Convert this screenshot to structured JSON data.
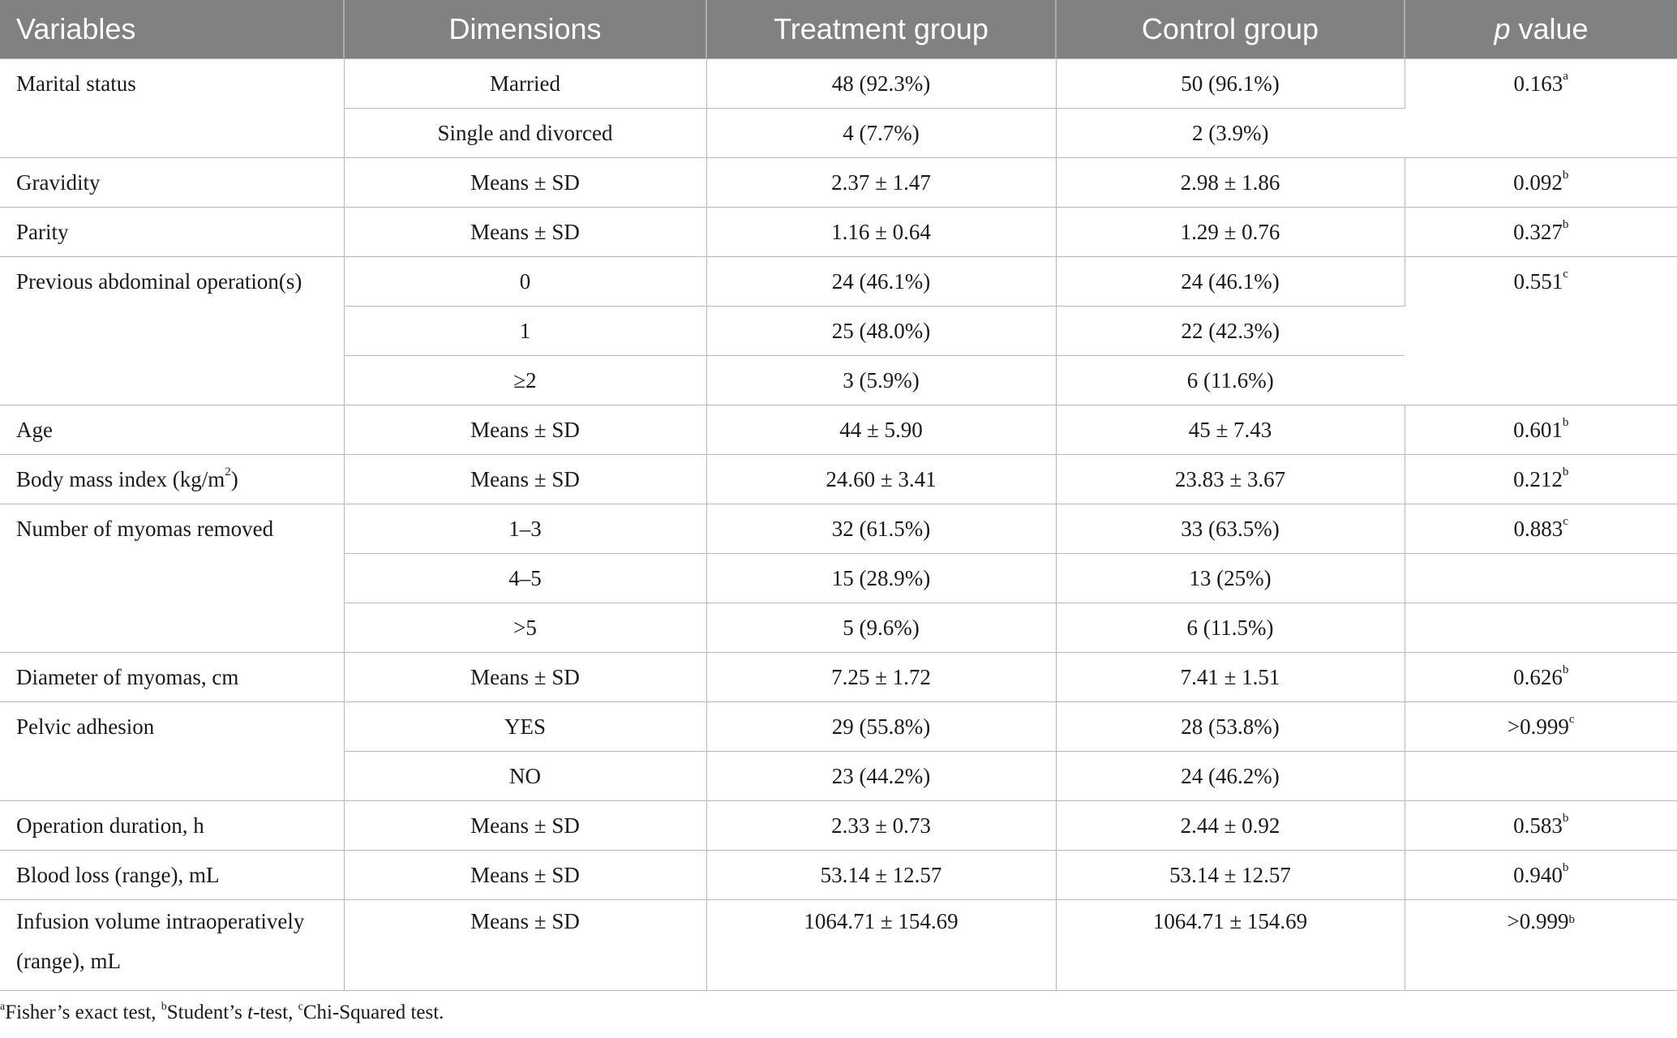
{
  "header": {
    "variables": "Variables",
    "dimensions": "Dimensions",
    "treatment": "Treatment group",
    "control": "Control group",
    "p_italic": "p",
    "p_rest": " value"
  },
  "rows": {
    "marital": {
      "label": "Marital status",
      "p": "0.163",
      "p_sup": "a",
      "sub": [
        {
          "dim": "Married",
          "t": "48 (92.3%)",
          "c": "50 (96.1%)"
        },
        {
          "dim": "Single and divorced",
          "t": "4 (7.7%)",
          "c": "2 (3.9%)"
        }
      ]
    },
    "gravidity": {
      "label": "Gravidity",
      "dim": "Means ± SD",
      "t": "2.37 ± 1.47",
      "c": "2.98 ± 1.86",
      "p": "0.092",
      "p_sup": "b"
    },
    "parity": {
      "label": "Parity",
      "dim": "Means ± SD",
      "t": "1.16 ± 0.64",
      "c": "1.29 ± 0.76",
      "p": "0.327",
      "p_sup": "b"
    },
    "prev_op": {
      "label": "Previous abdominal operation(s)",
      "p": "0.551",
      "p_sup": "c",
      "sub": [
        {
          "dim": "0",
          "t": "24 (46.1%)",
          "c": "24 (46.1%)"
        },
        {
          "dim": "1",
          "t": "25 (48.0%)",
          "c": "22 (42.3%)"
        },
        {
          "dim": "≥2",
          "t": "3 (5.9%)",
          "c": "6 (11.6%)"
        }
      ]
    },
    "age": {
      "label": "Age",
      "dim": "Means ± SD",
      "t": "44 ± 5.90",
      "c": "45 ± 7.43",
      "p": "0.601",
      "p_sup": "b"
    },
    "bmi": {
      "label_pre": "Body mass index (kg/m",
      "label_sup": "2",
      "label_post": ")",
      "dim": "Means ± SD",
      "t": "24.60 ± 3.41",
      "c": "23.83 ± 3.67",
      "p": "0.212",
      "p_sup": "b"
    },
    "myomas_num": {
      "label": "Number of myomas removed",
      "p": "0.883",
      "p_sup": "c",
      "sub": [
        {
          "dim": "1–3",
          "t": "32 (61.5%)",
          "c": "33 (63.5%)"
        },
        {
          "dim": "4–5",
          "t": "15 (28.9%)",
          "c": "13 (25%)"
        },
        {
          "dim": ">5",
          "t": "5 (9.6%)",
          "c": "6 (11.5%)"
        }
      ]
    },
    "diameter": {
      "label": "Diameter of myomas, cm",
      "dim": "Means ± SD",
      "t": "7.25 ± 1.72",
      "c": "7.41 ± 1.51",
      "p": "0.626",
      "p_sup": "b"
    },
    "adhesion": {
      "label": "Pelvic adhesion",
      "p": ">0.999",
      "p_sup": "c",
      "sub": [
        {
          "dim": "YES",
          "t": "29 (55.8%)",
          "c": "28 (53.8%)"
        },
        {
          "dim": "NO",
          "t": "23 (44.2%)",
          "c": "24 (46.2%)"
        }
      ]
    },
    "duration": {
      "label": "Operation duration, h",
      "dim": "Means ± SD",
      "t": "2.33 ± 0.73",
      "c": "2.44 ± 0.92",
      "p": "0.583",
      "p_sup": "b"
    },
    "blood": {
      "label": "Blood loss (range), mL",
      "dim": "Means ± SD",
      "t": "53.14 ± 12.57",
      "c": "53.14 ± 12.57",
      "p": "0.940",
      "p_sup": "b"
    },
    "infusion": {
      "label_line1": "Infusion volume intraoperatively",
      "label_line2": "(range), mL",
      "dim": "Means ± SD",
      "t": "1064.71 ± 154.69",
      "c": "1064.71 ± 154.69",
      "p": ">0.999",
      "p_sup": "b"
    }
  },
  "footnote": {
    "a_sup": "a",
    "a_text": "Fisher’s exact test, ",
    "b_sup": "b",
    "b_text_pre": "Student’s ",
    "b_italic": "t",
    "b_text_post": "-test, ",
    "c_sup": "c",
    "c_text": "Chi-Squared test."
  }
}
